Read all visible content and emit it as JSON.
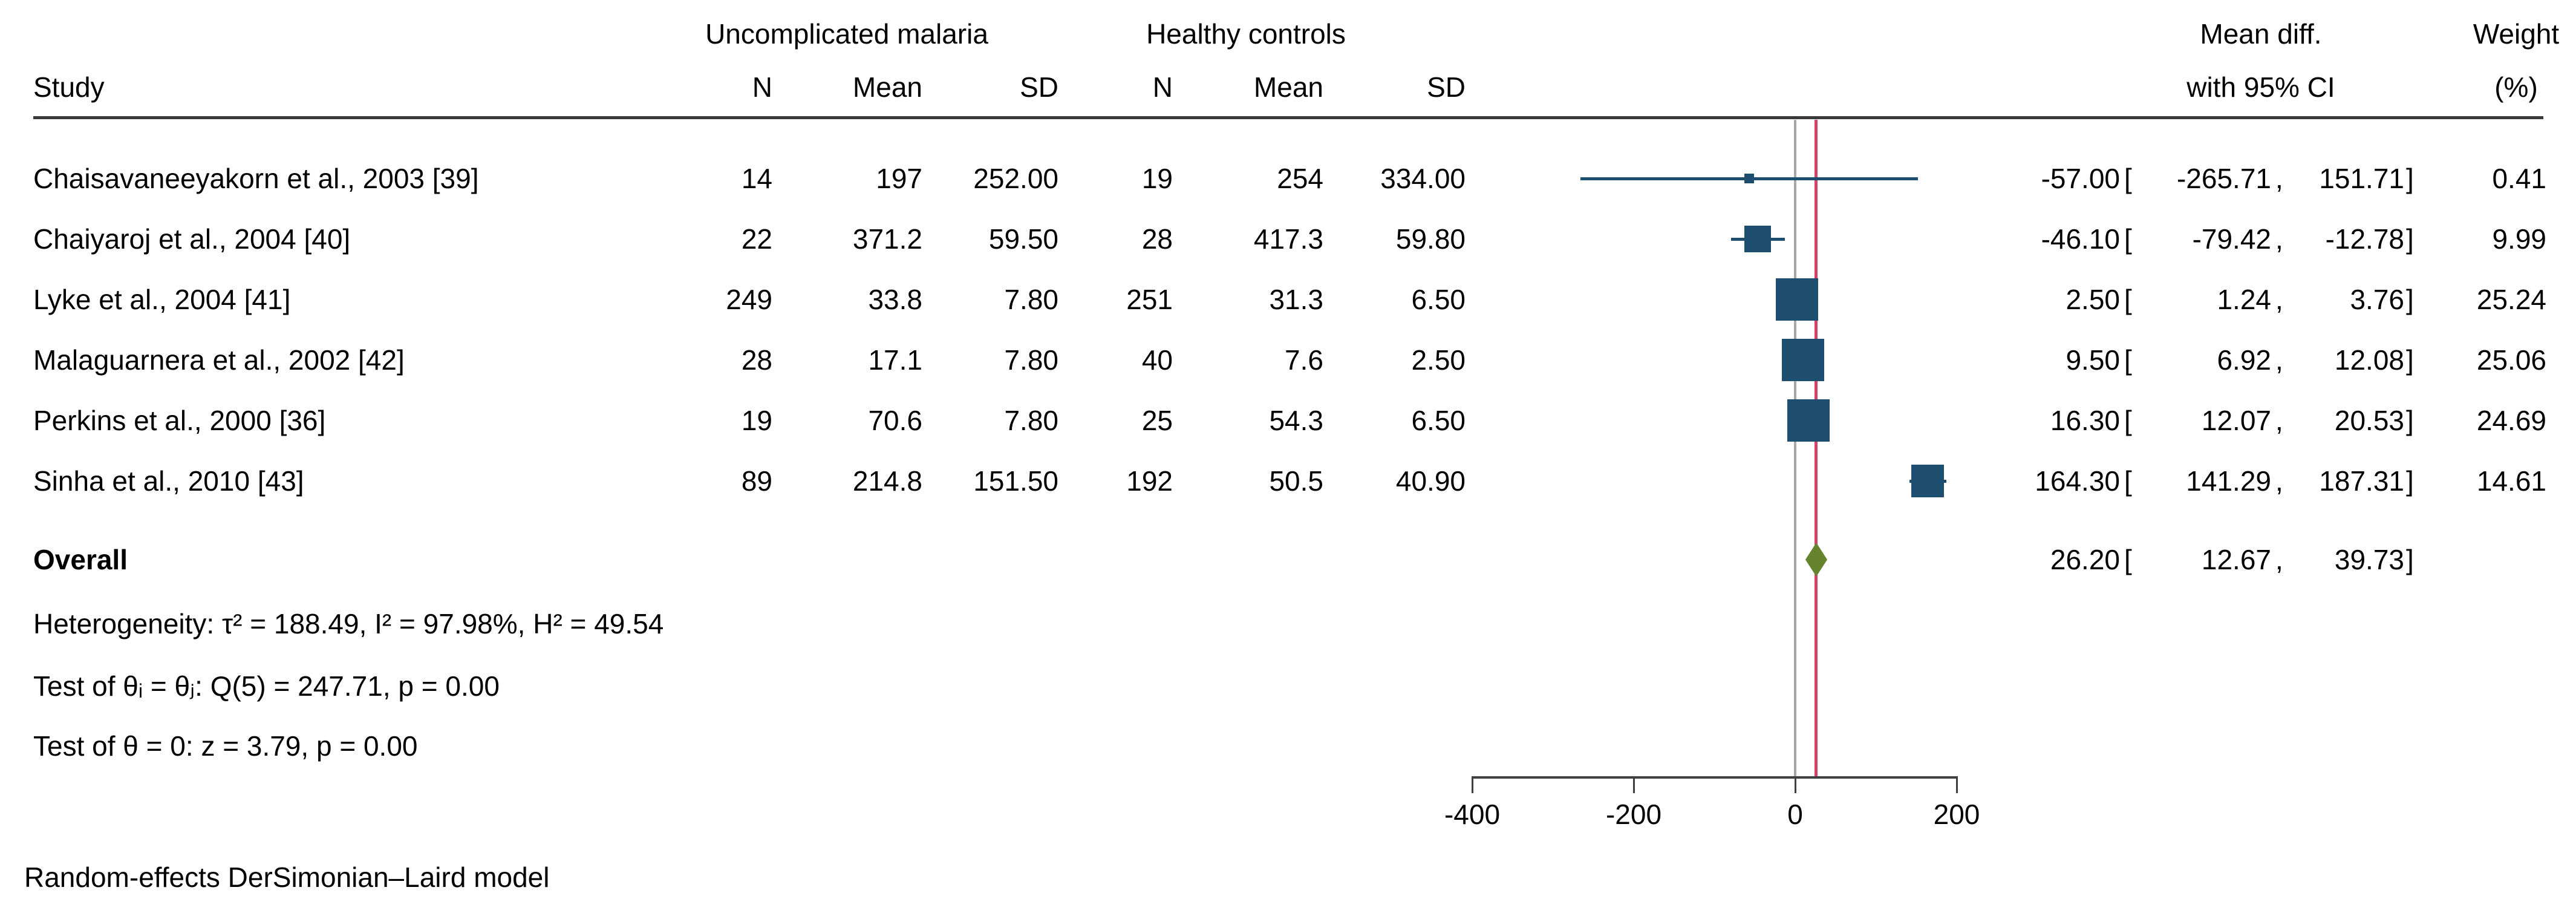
{
  "header": {
    "study": "Study",
    "group1": "Uncomplicated malaria",
    "group2": "Healthy controls",
    "col_n1": "N",
    "col_mean1": "Mean",
    "col_sd1": "SD",
    "col_n2": "N",
    "col_mean2": "Mean",
    "col_sd2": "SD",
    "effect_line1": "Mean diff.",
    "effect_line2": "with 95% CI",
    "weight_line1": "Weight",
    "weight_line2": "(%)"
  },
  "table": {
    "rows": [
      {
        "label": "Chaisavaneeyakorn et al., 2003 [39]",
        "n1": "14",
        "mean1": "197",
        "sd1": "252.00",
        "n2": "19",
        "mean2": "254",
        "sd2": "334.00",
        "eff": "-57.00",
        "lbr": "[",
        "lo": "-265.71",
        "comma": ",",
        "hi": "151.71",
        "rbr": "]",
        "weight": "0.41"
      },
      {
        "label": "Chaiyaroj et al., 2004 [40]",
        "n1": "22",
        "mean1": "371.2",
        "sd1": "59.50",
        "n2": "28",
        "mean2": "417.3",
        "sd2": "59.80",
        "eff": "-46.10",
        "lbr": "[",
        "lo": "-79.42",
        "comma": ",",
        "hi": "-12.78",
        "rbr": "]",
        "weight": "9.99"
      },
      {
        "label": "Lyke et al., 2004 [41]",
        "n1": "249",
        "mean1": "33.8",
        "sd1": "7.80",
        "n2": "251",
        "mean2": "31.3",
        "sd2": "6.50",
        "eff": "2.50",
        "lbr": "[",
        "lo": "1.24",
        "comma": ",",
        "hi": "3.76",
        "rbr": "]",
        "weight": "25.24"
      },
      {
        "label": "Malaguarnera et al., 2002 [42]",
        "n1": "28",
        "mean1": "17.1",
        "sd1": "7.80",
        "n2": "40",
        "mean2": "7.6",
        "sd2": "2.50",
        "eff": "9.50",
        "lbr": "[",
        "lo": "6.92",
        "comma": ",",
        "hi": "12.08",
        "rbr": "]",
        "weight": "25.06"
      },
      {
        "label": "Perkins et al., 2000 [36]",
        "n1": "19",
        "mean1": "70.6",
        "sd1": "7.80",
        "n2": "25",
        "mean2": "54.3",
        "sd2": "6.50",
        "eff": "16.30",
        "lbr": "[",
        "lo": "12.07",
        "comma": ",",
        "hi": "20.53",
        "rbr": "]",
        "weight": "24.69"
      },
      {
        "label": "Sinha et al., 2010 [43]",
        "n1": "89",
        "mean1": "214.8",
        "sd1": "151.50",
        "n2": "192",
        "mean2": "50.5",
        "sd2": "40.90",
        "eff": "164.30",
        "lbr": "[",
        "lo": "141.29",
        "comma": ",",
        "hi": "187.31",
        "rbr": "]",
        "weight": "14.61"
      }
    ]
  },
  "overall_row": {
    "label": "Overall",
    "eff": "26.20",
    "lbr": "[",
    "lo": "12.67",
    "comma": ",",
    "hi": "39.73",
    "rbr": "]"
  },
  "stats": {
    "heterogeneity": "Heterogeneity: τ² = 188.49, I² = 97.98%, H² = 49.54",
    "test_theta_ij": "Test of θᵢ = θⱼ: Q(5) = 247.71, p = 0.00",
    "test_theta_zero": "Test of θ = 0: z = 3.79, p = 0.00"
  },
  "footer": {
    "model": "Random-effects DerSimonian–Laird model"
  },
  "chart_data": {
    "type": "scatter",
    "subtype": "forest-plot",
    "title": "",
    "xlabel": "",
    "x_ticks": [
      "-400",
      "-200",
      "0",
      "200"
    ],
    "x_tick_values": [
      -400,
      -200,
      0,
      200
    ],
    "xlim": [
      -410,
      237
    ],
    "null_line_x": 0,
    "overall_line_x": 26.2,
    "categories": [
      "Chaisavaneeyakorn et al., 2003 [39]",
      "Chaiyaroj et al., 2004 [40]",
      "Lyke et al., 2004 [41]",
      "Malaguarnera et al., 2002 [42]",
      "Perkins et al., 2000 [36]",
      "Sinha et al., 2010 [43]"
    ],
    "series": [
      {
        "name": "mean_diff",
        "values": [
          -57.0,
          -46.1,
          2.5,
          9.5,
          16.3,
          164.3
        ]
      },
      {
        "name": "ci_low",
        "values": [
          -265.71,
          -79.42,
          1.24,
          6.92,
          12.07,
          141.29
        ]
      },
      {
        "name": "ci_high",
        "values": [
          151.71,
          -12.78,
          3.76,
          12.08,
          20.53,
          187.31
        ]
      },
      {
        "name": "weight_pct",
        "values": [
          0.41,
          9.99,
          25.24,
          25.06,
          24.69,
          14.61
        ]
      }
    ],
    "overall": {
      "effect": 26.2,
      "ci_low": 12.67,
      "ci_high": 39.73
    },
    "grid": false,
    "legend": false
  },
  "colors": {
    "marker_navy": "#1e4e6f",
    "diamond_olive": "#66842e",
    "overall_line_red": "#d64265",
    "null_line_gray": "#a8a8a8",
    "axis_dark": "#404040",
    "rule_dark": "#3a3a3a",
    "text": "#000000"
  }
}
